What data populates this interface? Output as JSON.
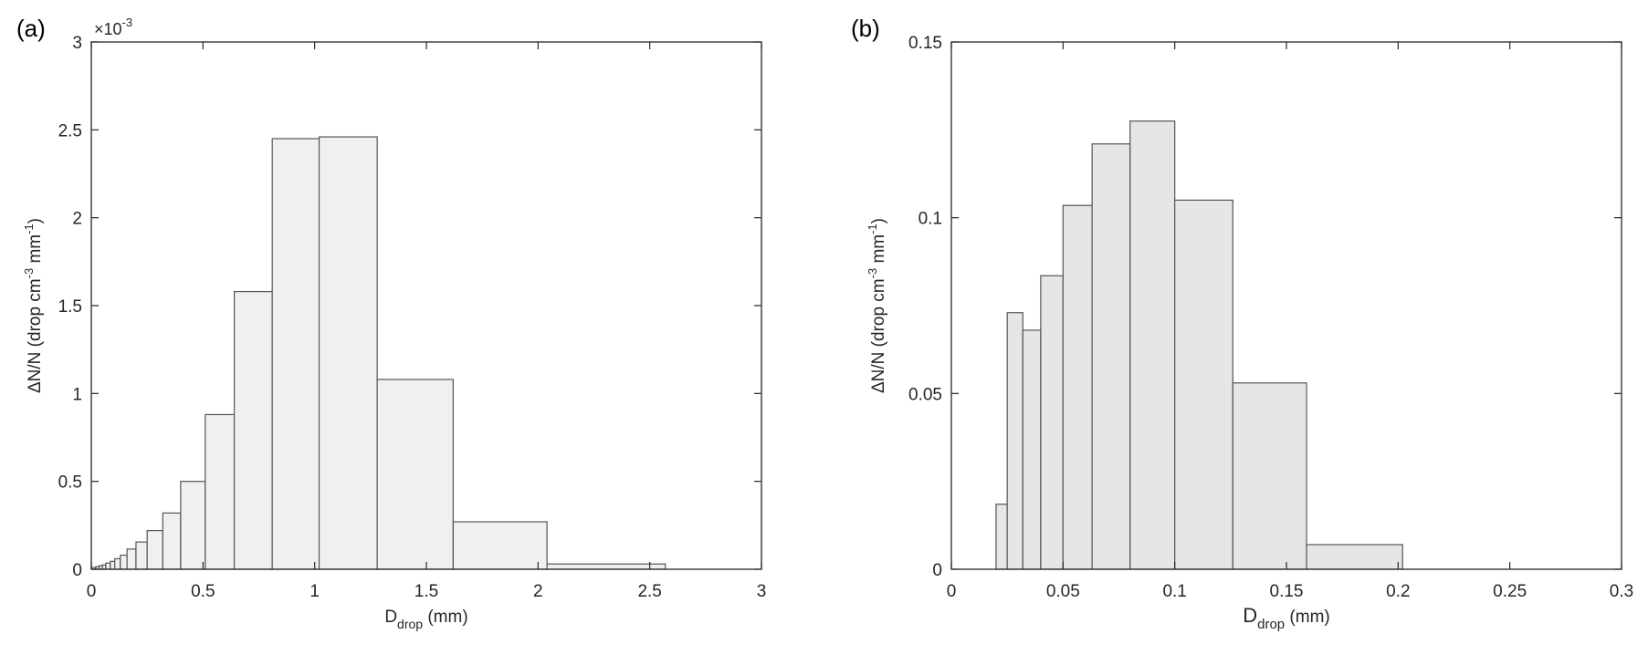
{
  "chart_data": [
    {
      "type": "bar",
      "panel_label": "(a)",
      "xlabel": {
        "main": "D",
        "sub": "drop",
        "rest": " (mm)"
      },
      "ylabel": {
        "pre": "ΔN/N (drop  cm",
        "sup1": "-3",
        "mid": " mm",
        "sup2": "-1",
        "post": ")"
      },
      "y_exponent": {
        "base": "×10",
        "power": "-3"
      },
      "xlim": [
        0,
        3
      ],
      "ylim": [
        0,
        3
      ],
      "xticks": [
        0,
        0.5,
        1,
        1.5,
        2,
        2.5,
        3
      ],
      "xtick_labels": [
        "0",
        "0.5",
        "1",
        "1.5",
        "2",
        "2.5",
        "3"
      ],
      "yticks": [
        0,
        0.5,
        1,
        1.5,
        2,
        2.5,
        3
      ],
      "ytick_labels": [
        "0",
        "0.5",
        "1",
        "1.5",
        "2",
        "2.5",
        "3"
      ],
      "fill_color": "#f0f0f0",
      "edge_color": "#555555",
      "bins": [
        {
          "x0": 0.0,
          "x1": 0.02,
          "value": 0.01
        },
        {
          "x0": 0.02,
          "x1": 0.035,
          "value": 0.015
        },
        {
          "x0": 0.035,
          "x1": 0.05,
          "value": 0.02
        },
        {
          "x0": 0.05,
          "x1": 0.065,
          "value": 0.025
        },
        {
          "x0": 0.065,
          "x1": 0.085,
          "value": 0.035
        },
        {
          "x0": 0.085,
          "x1": 0.105,
          "value": 0.045
        },
        {
          "x0": 0.105,
          "x1": 0.13,
          "value": 0.06
        },
        {
          "x0": 0.13,
          "x1": 0.16,
          "value": 0.08
        },
        {
          "x0": 0.16,
          "x1": 0.2,
          "value": 0.115
        },
        {
          "x0": 0.2,
          "x1": 0.25,
          "value": 0.155
        },
        {
          "x0": 0.25,
          "x1": 0.32,
          "value": 0.22
        },
        {
          "x0": 0.32,
          "x1": 0.4,
          "value": 0.32
        },
        {
          "x0": 0.4,
          "x1": 0.51,
          "value": 0.5
        },
        {
          "x0": 0.51,
          "x1": 0.64,
          "value": 0.88
        },
        {
          "x0": 0.64,
          "x1": 0.81,
          "value": 1.58
        },
        {
          "x0": 0.81,
          "x1": 1.02,
          "value": 2.45
        },
        {
          "x0": 1.02,
          "x1": 1.28,
          "value": 2.46
        },
        {
          "x0": 1.28,
          "x1": 1.62,
          "value": 1.08
        },
        {
          "x0": 1.62,
          "x1": 2.04,
          "value": 0.27
        },
        {
          "x0": 2.04,
          "x1": 2.57,
          "value": 0.03
        }
      ]
    },
    {
      "type": "bar",
      "panel_label": "(b)",
      "xlabel": {
        "main": "D",
        "sub": "drop",
        "rest": "    (mm)"
      },
      "ylabel": {
        "pre": "ΔN/N (drop  cm",
        "sup1": "-3",
        "mid": " mm",
        "sup2": "-1",
        "post": ")"
      },
      "xlim": [
        0,
        0.3
      ],
      "ylim": [
        0,
        0.15
      ],
      "xticks": [
        0,
        0.05,
        0.1,
        0.15,
        0.2,
        0.25,
        0.3
      ],
      "xtick_labels": [
        "0",
        "0.05",
        "0.1",
        "0.15",
        "0.2",
        "0.25",
        "0.3"
      ],
      "yticks": [
        0,
        0.05,
        0.1,
        0.15
      ],
      "ytick_labels": [
        "0",
        "0.05",
        "0.1",
        "0.15"
      ],
      "fill_color": "#e6e6e6",
      "edge_color": "#555555",
      "bins": [
        {
          "x0": 0.02,
          "x1": 0.025,
          "value": 0.0185
        },
        {
          "x0": 0.025,
          "x1": 0.032,
          "value": 0.073
        },
        {
          "x0": 0.032,
          "x1": 0.04,
          "value": 0.068
        },
        {
          "x0": 0.04,
          "x1": 0.05,
          "value": 0.0835
        },
        {
          "x0": 0.05,
          "x1": 0.063,
          "value": 0.1035
        },
        {
          "x0": 0.063,
          "x1": 0.08,
          "value": 0.121
        },
        {
          "x0": 0.08,
          "x1": 0.1,
          "value": 0.1275
        },
        {
          "x0": 0.1,
          "x1": 0.126,
          "value": 0.105
        },
        {
          "x0": 0.126,
          "x1": 0.159,
          "value": 0.053
        },
        {
          "x0": 0.159,
          "x1": 0.202,
          "value": 0.007
        },
        {
          "x0": 0.202,
          "x1": 0.3,
          "value": 0.0
        }
      ]
    }
  ]
}
